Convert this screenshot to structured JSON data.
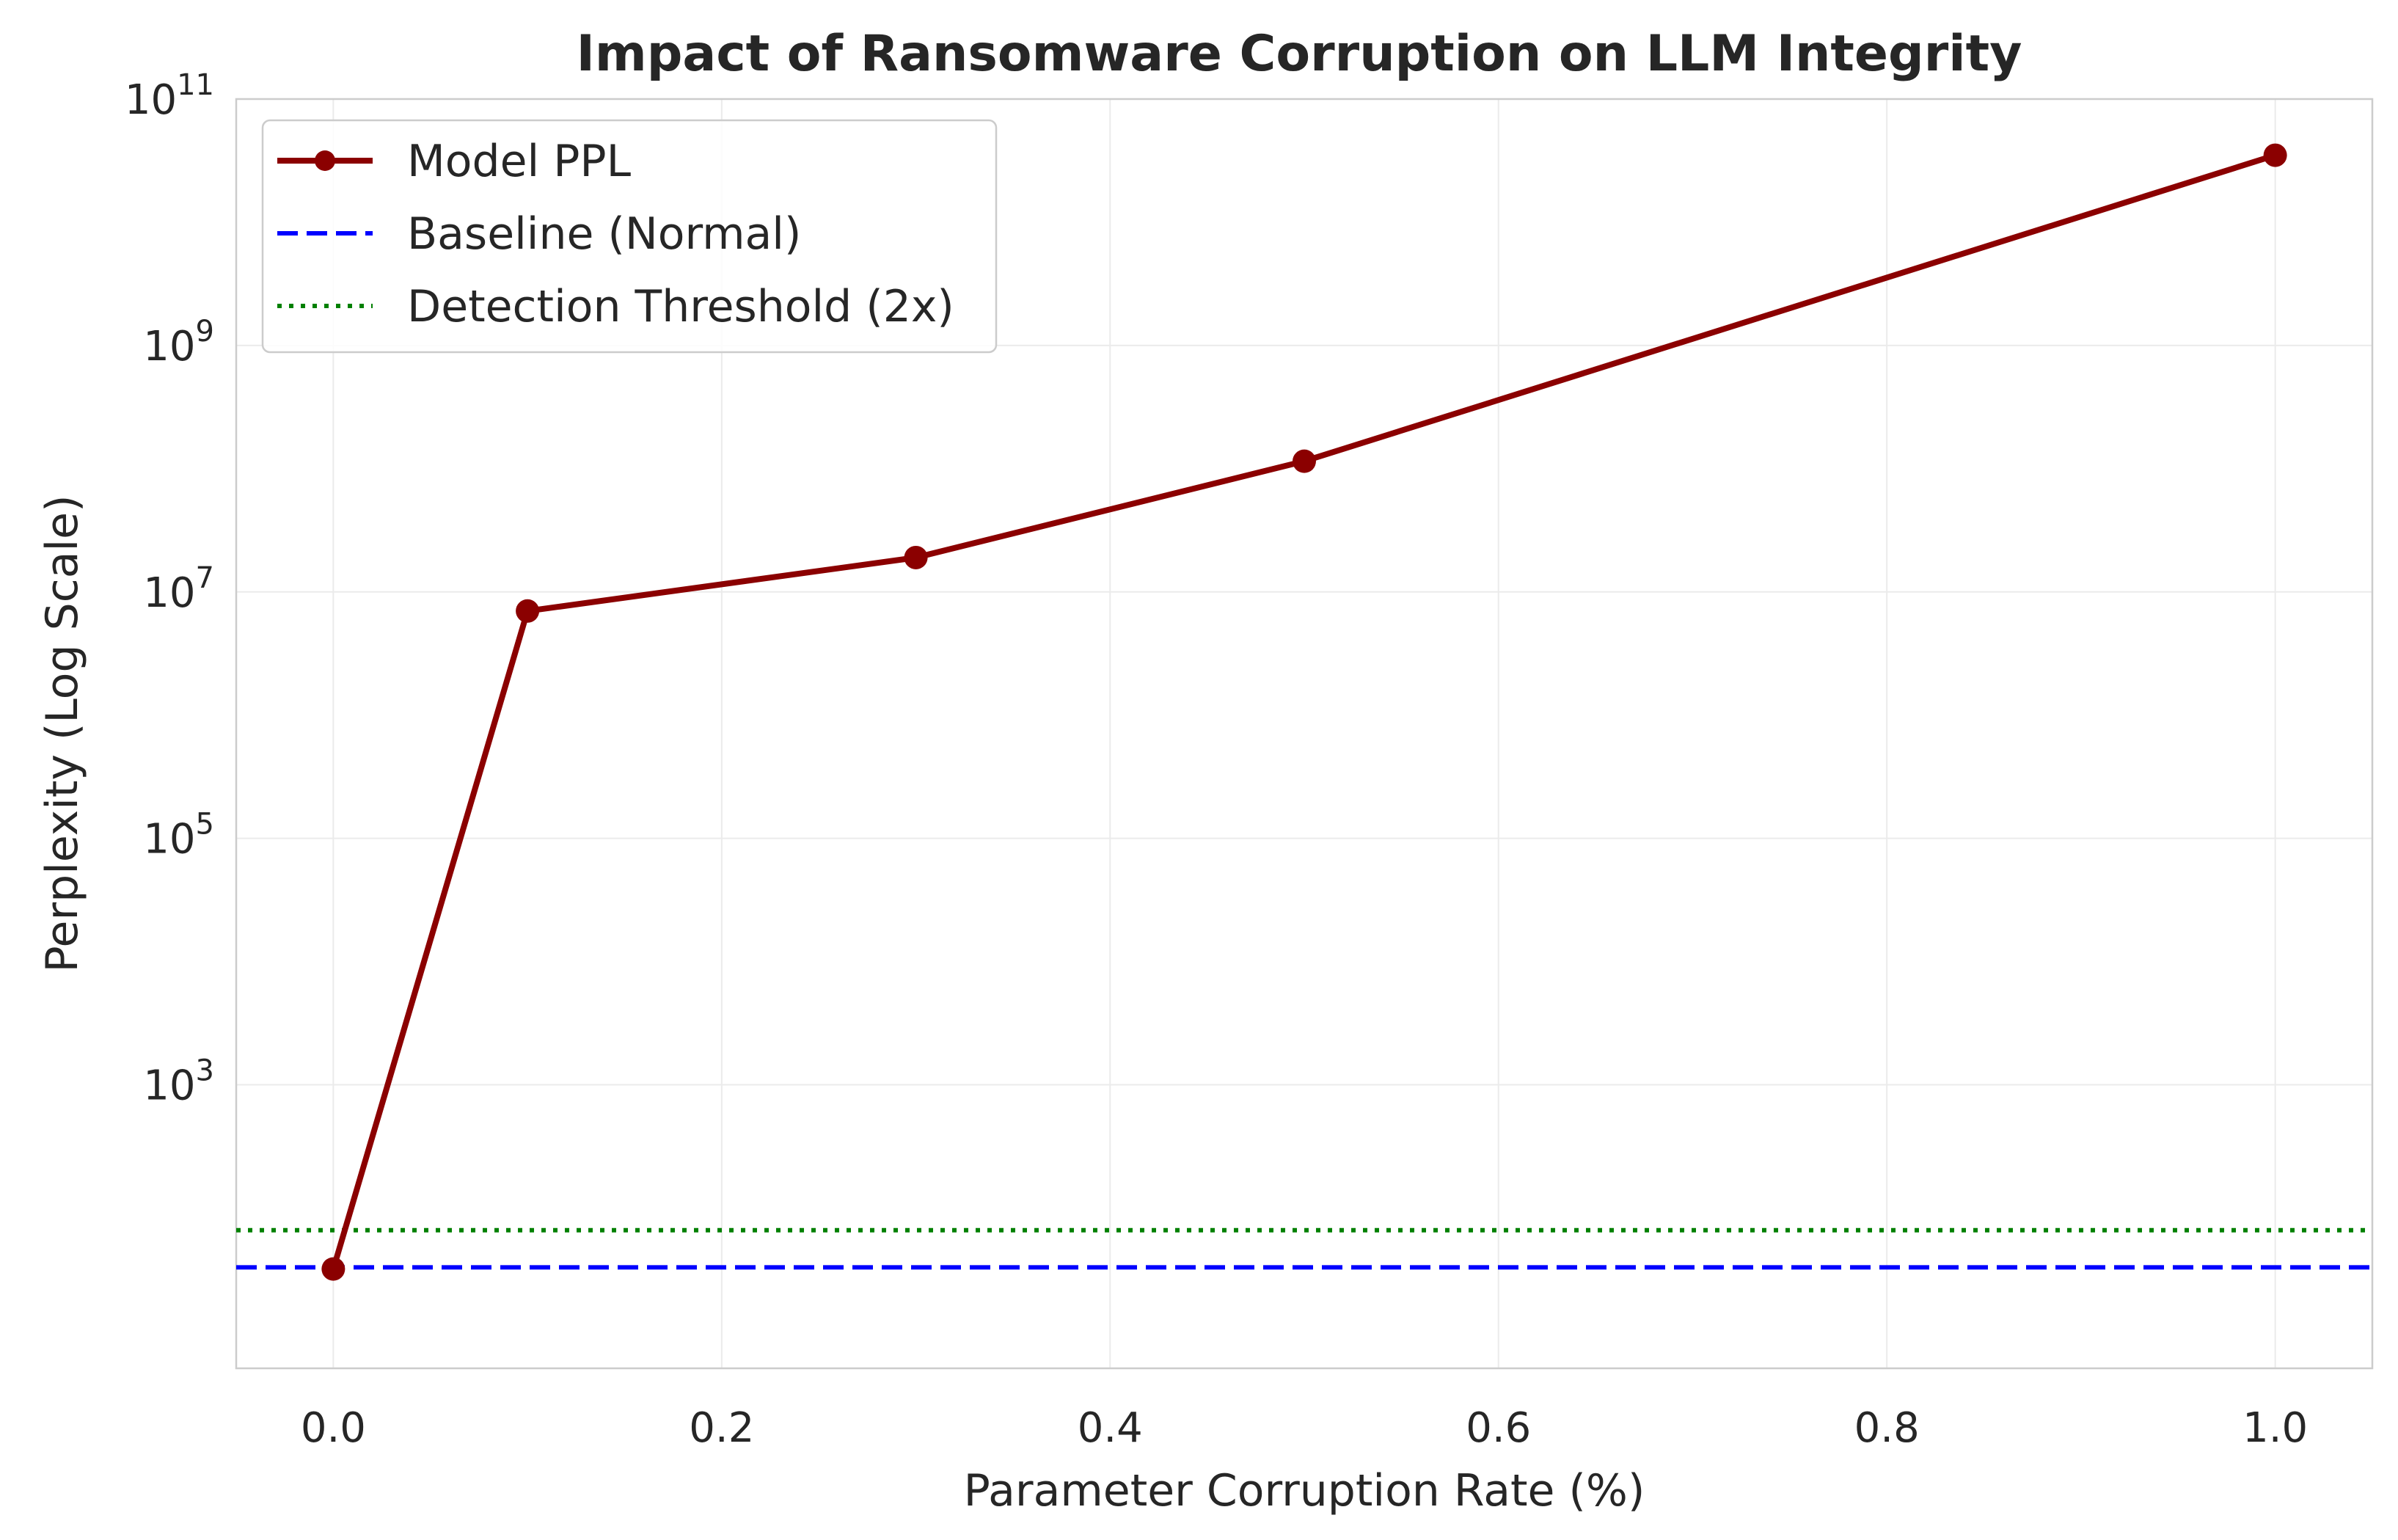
{
  "chart_data": {
    "type": "line",
    "title": "Impact of Ransomware Corruption on LLM Integrity",
    "xlabel": "Parameter Corruption Rate (%)",
    "ylabel": "Perplexity (Log Scale)",
    "yscale": "log",
    "xlim": [
      -0.05,
      1.05
    ],
    "ylim": [
      5,
      100000000000
    ],
    "grid": true,
    "legend_position": "top-left",
    "x_ticks": [
      {
        "value": 0.0,
        "label": "0.0"
      },
      {
        "value": 0.2,
        "label": "0.2"
      },
      {
        "value": 0.4,
        "label": "0.4"
      },
      {
        "value": 0.6,
        "label": "0.6"
      },
      {
        "value": 0.8,
        "label": "0.8"
      },
      {
        "value": 1.0,
        "label": "1.0"
      }
    ],
    "y_ticks": [
      {
        "value": 1000,
        "base": "10",
        "exp": "3"
      },
      {
        "value": 100000,
        "base": "10",
        "exp": "5"
      },
      {
        "value": 10000000,
        "base": "10",
        "exp": "7"
      },
      {
        "value": 1000000000,
        "base": "10",
        "exp": "9"
      },
      {
        "value": 100000000000,
        "base": "10",
        "exp": "11"
      }
    ],
    "series": [
      {
        "name": "Model PPL",
        "style": "line-marker",
        "color": "#8b0000",
        "x": [
          0.0,
          0.1,
          0.3,
          0.5,
          1.0
        ],
        "y": [
          32,
          7000000,
          19000000,
          115000000,
          35000000000
        ]
      }
    ],
    "reference_lines": [
      {
        "name": "Baseline (Normal)",
        "y": 33,
        "color": "#0000ff",
        "style": "dashed"
      },
      {
        "name": "Detection Threshold (2x)",
        "y": 66,
        "color": "#008000",
        "style": "dotted"
      }
    ]
  }
}
